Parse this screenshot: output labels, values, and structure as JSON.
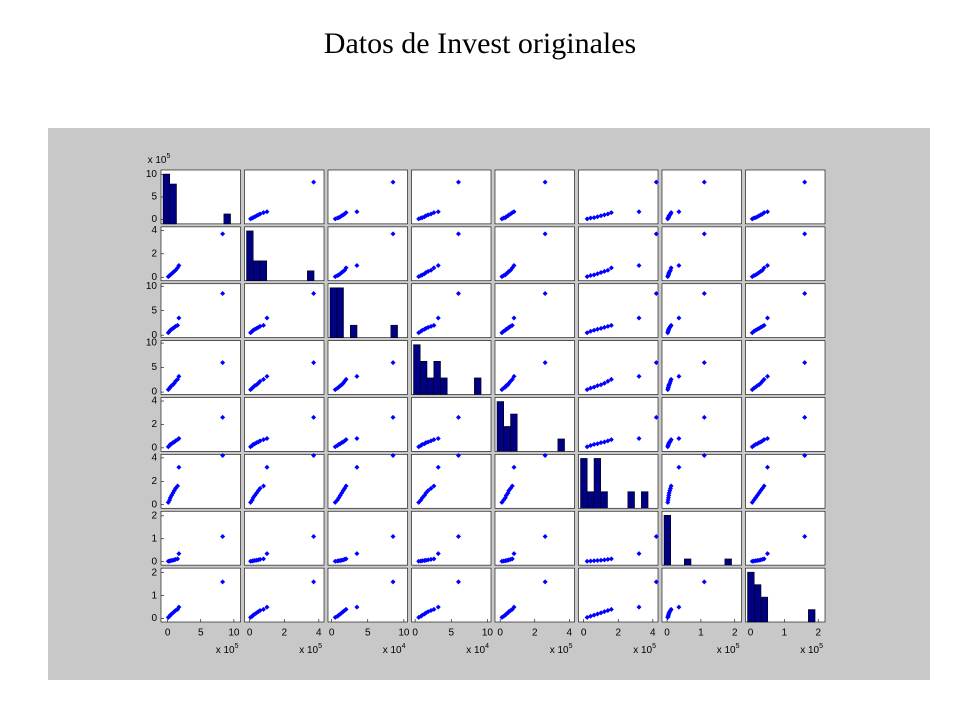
{
  "chart_data": {
    "type": "scatter_matrix",
    "title": "Datos de Invest originales",
    "marker_color": "#0000ff",
    "bar_color": "#000080",
    "multiplier": "x 10",
    "variables": [
      {
        "values": [
          0.1,
          0.3,
          0.4,
          0.6,
          0.8,
          1.0,
          1.2,
          1.5,
          1.7,
          8.3
        ],
        "lim": [
          -1,
          11
        ],
        "ticks": [
          0,
          5,
          10
        ],
        "exponent": "5"
      },
      {
        "values": [
          0.05,
          0.15,
          0.2,
          0.3,
          0.4,
          0.5,
          0.6,
          0.8,
          1.0,
          3.7
        ],
        "lim": [
          -0.3,
          4.3
        ],
        "ticks": [
          0,
          2,
          4
        ],
        "exponent": "5"
      },
      {
        "values": [
          0.5,
          0.8,
          1.0,
          1.2,
          1.4,
          1.6,
          1.8,
          2.0,
          3.5,
          8.5
        ],
        "lim": [
          -0.5,
          10.5
        ],
        "ticks": [
          0,
          5,
          10
        ],
        "exponent": "4"
      },
      {
        "values": [
          0.5,
          0.8,
          1.0,
          1.3,
          1.5,
          1.8,
          2.2,
          2.6,
          3.2,
          6.0
        ],
        "lim": [
          -0.5,
          10.5
        ],
        "ticks": [
          0,
          5,
          10
        ],
        "exponent": "4"
      },
      {
        "values": [
          0.1,
          0.2,
          0.3,
          0.35,
          0.45,
          0.5,
          0.6,
          0.7,
          0.8,
          2.6
        ],
        "lim": [
          -0.3,
          4.3
        ],
        "ticks": [
          0,
          2,
          4
        ],
        "exponent": "5"
      },
      {
        "values": [
          0.2,
          0.4,
          0.6,
          0.8,
          1.0,
          1.2,
          1.4,
          1.6,
          3.2,
          4.2
        ],
        "lim": [
          -0.3,
          4.3
        ],
        "ticks": [
          0,
          2,
          4
        ],
        "exponent": "5"
      },
      {
        "values": [
          0.02,
          0.03,
          0.04,
          0.05,
          0.06,
          0.08,
          0.1,
          0.12,
          0.35,
          1.1
        ],
        "lim": [
          -0.15,
          2.2
        ],
        "ticks": [
          0,
          1,
          2
        ],
        "exponent": "5"
      },
      {
        "values": [
          0.05,
          0.1,
          0.15,
          0.2,
          0.25,
          0.3,
          0.35,
          0.4,
          0.5,
          1.6
        ],
        "lim": [
          -0.15,
          2.2
        ],
        "ticks": [
          0,
          1,
          2
        ],
        "exponent": "5"
      }
    ]
  }
}
